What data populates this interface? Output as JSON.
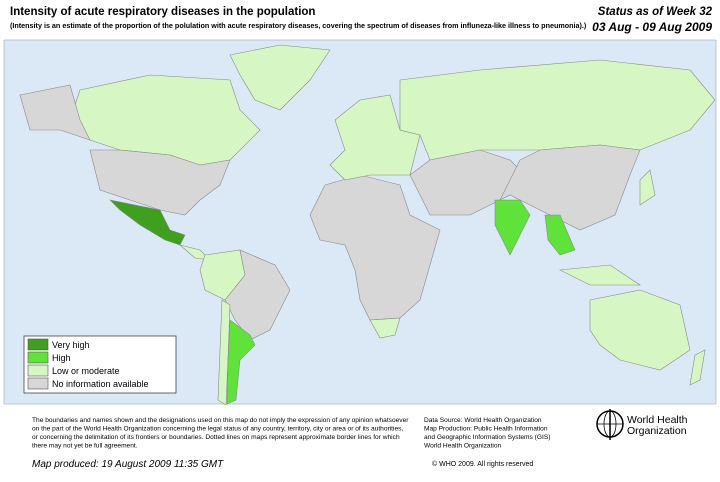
{
  "header": {
    "title": "Intensity of acute respiratory diseases in the population",
    "subtitle": "(Intensity is an estimate of the proportion of the polulation with acute respiratory diseases, covering the spectrum of diseases from influneza-like illness to pneumonia).)",
    "status": "Status as of Week 32",
    "dates": "03 Aug - 09 Aug 2009"
  },
  "legend": {
    "items": [
      {
        "label": "Very high",
        "color": "#3f9f1f"
      },
      {
        "label": "High",
        "color": "#5fe33a"
      },
      {
        "label": "Low or moderate",
        "color": "#d6f7c4"
      },
      {
        "label": "No information available",
        "color": "#d7d7d7"
      }
    ]
  },
  "footer": {
    "disclaimer": [
      "The boundaries and names shown and the designations used on this map do not imply the expression of any opinion whatsoever",
      "on the part of the World Health Organization concerning the legal status of any country, territory, city or area or of its authorities,",
      "or concerning the delimitation of its frontiers or boundaries.  Dotted lines on maps represent approximate border lines for which",
      "there may not yet be full agreement."
    ],
    "produced": "Map produced: 19 August 2009 11:35 GMT",
    "source": [
      "Data Source: World Health Organization",
      "Map Production: Public Health Information",
      "and Geographic Information Systems (GIS)",
      "World Health Organization"
    ],
    "org": [
      "World Health",
      "Organization"
    ],
    "copyright": "© WHO 2009. All rights reserved"
  }
}
